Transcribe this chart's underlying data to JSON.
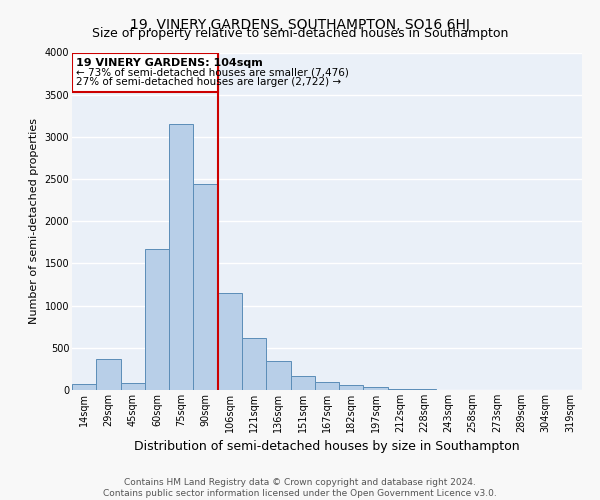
{
  "title": "19, VINERY GARDENS, SOUTHAMPTON, SO16 6HJ",
  "subtitle": "Size of property relative to semi-detached houses in Southampton",
  "xlabel": "Distribution of semi-detached houses by size in Southampton",
  "ylabel": "Number of semi-detached properties",
  "categories": [
    "14sqm",
    "29sqm",
    "45sqm",
    "60sqm",
    "75sqm",
    "90sqm",
    "106sqm",
    "121sqm",
    "136sqm",
    "151sqm",
    "167sqm",
    "182sqm",
    "197sqm",
    "212sqm",
    "228sqm",
    "243sqm",
    "258sqm",
    "273sqm",
    "289sqm",
    "304sqm",
    "319sqm"
  ],
  "values": [
    70,
    370,
    80,
    1670,
    3150,
    2440,
    1150,
    620,
    340,
    170,
    100,
    60,
    30,
    15,
    10,
    5,
    3,
    2,
    1,
    1,
    0
  ],
  "bar_color": "#b8cfe8",
  "bar_edge_color": "#5b8db8",
  "vline_x_index": 6,
  "vline_color": "#cc0000",
  "vline_label": "19 VINERY GARDENS: 104sqm",
  "annotation_smaller": "← 73% of semi-detached houses are smaller (7,476)",
  "annotation_larger": "27% of semi-detached houses are larger (2,722) →",
  "box_color": "#cc0000",
  "ylim": [
    0,
    4000
  ],
  "yticks": [
    0,
    500,
    1000,
    1500,
    2000,
    2500,
    3000,
    3500,
    4000
  ],
  "background_color": "#eaf0f8",
  "grid_color": "#ffffff",
  "fig_background": "#f8f8f8",
  "footer": "Contains HM Land Registry data © Crown copyright and database right 2024.\nContains public sector information licensed under the Open Government Licence v3.0.",
  "title_fontsize": 10,
  "subtitle_fontsize": 9,
  "xlabel_fontsize": 9,
  "ylabel_fontsize": 8,
  "tick_fontsize": 7,
  "annotation_fontsize": 8,
  "footer_fontsize": 6.5
}
